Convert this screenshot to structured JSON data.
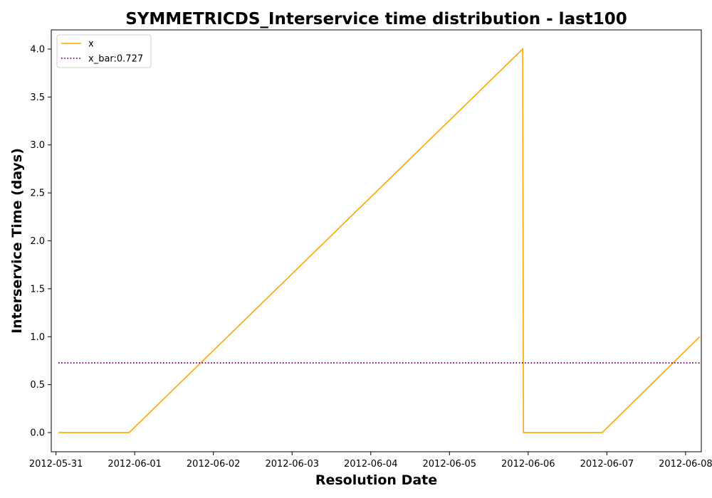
{
  "chart_data": {
    "type": "line",
    "title": "SYMMETRICDS_Interservice time distribution - last100",
    "xlabel": "Resolution Date",
    "ylabel": "Interservice Time (days)",
    "xlim": [
      -0.06,
      8.2
    ],
    "ylim": [
      -0.2,
      4.2
    ],
    "x_ticks": [
      {
        "label": "2012-05-31",
        "x": 0
      },
      {
        "label": "2012-06-01",
        "x": 1
      },
      {
        "label": "2012-06-02",
        "x": 2
      },
      {
        "label": "2012-06-03",
        "x": 3
      },
      {
        "label": "2012-06-04",
        "x": 4
      },
      {
        "label": "2012-06-05",
        "x": 5
      },
      {
        "label": "2012-06-06",
        "x": 6
      },
      {
        "label": "2012-06-07",
        "x": 7
      },
      {
        "label": "2012-06-08",
        "x": 8
      }
    ],
    "y_ticks": [
      {
        "label": "0.0",
        "y": 0.0
      },
      {
        "label": "0.5",
        "y": 0.5
      },
      {
        "label": "1.0",
        "y": 1.0
      },
      {
        "label": "1.5",
        "y": 1.5
      },
      {
        "label": "2.0",
        "y": 2.0
      },
      {
        "label": "2.5",
        "y": 2.5
      },
      {
        "label": "3.0",
        "y": 3.0
      },
      {
        "label": "3.5",
        "y": 3.5
      },
      {
        "label": "4.0",
        "y": 4.0
      }
    ],
    "series": [
      {
        "name": "x",
        "color": "#ffa500",
        "style": "solid",
        "points": [
          {
            "x": 0.03,
            "y": 0
          },
          {
            "x": 0.93,
            "y": 0
          },
          {
            "x": 5.93,
            "y": 4
          },
          {
            "x": 5.94,
            "y": 0
          },
          {
            "x": 6.94,
            "y": 0
          },
          {
            "x": 8.18,
            "y": 1
          }
        ]
      },
      {
        "name": "x_bar:0.727",
        "color": "#800080",
        "style": "dotted",
        "points": [
          {
            "x": 0.03,
            "y": 0.727
          },
          {
            "x": 8.18,
            "y": 0.727
          }
        ]
      }
    ],
    "legend": {
      "location": "top-left",
      "entries": [
        "x",
        "x_bar:0.727"
      ]
    },
    "grid": false
  }
}
